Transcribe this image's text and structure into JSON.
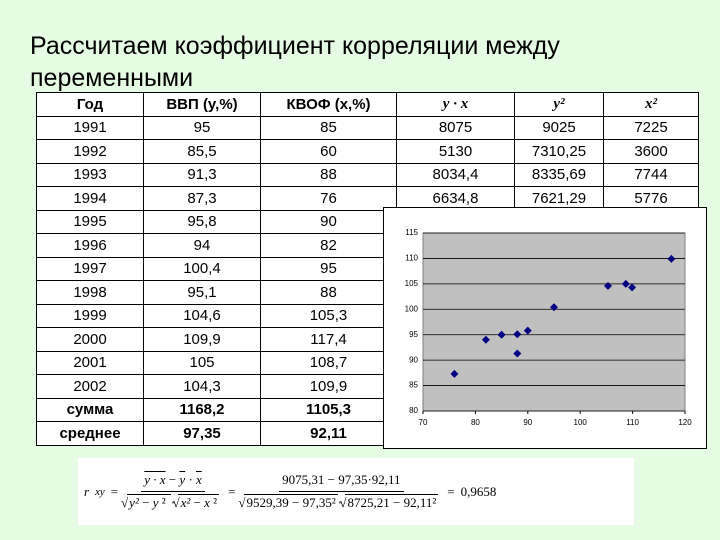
{
  "title": "Рассчитаем коэффициент корреляции между переменными",
  "table": {
    "header": [
      "Год",
      "ВВП (y,%)",
      "КВОФ (x,%)",
      "y · x",
      "y²",
      "x²"
    ],
    "rows": [
      [
        "1991",
        "95",
        "85",
        "8075",
        "9025",
        "7225"
      ],
      [
        "1992",
        "85,5",
        "60",
        "5130",
        "7310,25",
        "3600"
      ],
      [
        "1993",
        "91,3",
        "88",
        "8034,4",
        "8335,69",
        "7744"
      ],
      [
        "1994",
        "87,3",
        "76",
        "6634,8",
        "7621,29",
        "5776"
      ],
      [
        "1995",
        "95,8",
        "90"
      ],
      [
        "1996",
        "94",
        "82"
      ],
      [
        "1997",
        "100,4",
        "95"
      ],
      [
        "1998",
        "95,1",
        "88"
      ],
      [
        "1999",
        "104,6",
        "105,3"
      ],
      [
        "2000",
        "109,9",
        "117,4"
      ],
      [
        "2001",
        "105",
        "108,7"
      ],
      [
        "2002",
        "104,3",
        "109,9"
      ],
      [
        "сумма",
        "1168,2",
        "1105,3"
      ],
      [
        "среднее",
        "97,35",
        "92,11"
      ]
    ]
  },
  "chart_data": {
    "type": "scatter",
    "color": "#000080",
    "background": "#c0c0c0",
    "grid": true,
    "x": [
      76,
      82,
      85,
      88,
      88,
      90,
      95,
      105.3,
      108.7,
      109.9,
      117.4
    ],
    "values": [
      87.3,
      94,
      95,
      91.3,
      95.1,
      95.8,
      100.4,
      104.6,
      105,
      104.3,
      109.9
    ],
    "xlim": [
      70,
      120
    ],
    "xticks": [
      70,
      80,
      90,
      100,
      110,
      120
    ],
    "ylim": [
      80,
      115
    ],
    "yticks": [
      80,
      85,
      90,
      95,
      100,
      105,
      110,
      115
    ]
  },
  "formula": {
    "lhs": "r",
    "lhs_sub": "xy",
    "eq": "=",
    "sym_num": [
      {
        "t": "y · x",
        "bar": true
      },
      {
        "t": "−"
      },
      {
        "t": "y",
        "bar": true
      },
      {
        "t": "·"
      },
      {
        "t": "x",
        "bar": true
      }
    ],
    "sym_den1": [
      {
        "t": "y²",
        "bar": true
      },
      {
        "t": "−"
      },
      {
        "t": "y",
        "bar": true
      },
      {
        "t": "²"
      }
    ],
    "sym_dot": "·",
    "sym_den2": [
      {
        "t": "x²",
        "bar": true
      },
      {
        "t": "−"
      },
      {
        "t": "x",
        "bar": true
      },
      {
        "t": "²"
      }
    ],
    "num": "9075,31 − 97,35·92,11",
    "den1": "9529,39 − 97,35²",
    "den2": "8725,21 − 92,11²",
    "result": "0,9658"
  }
}
